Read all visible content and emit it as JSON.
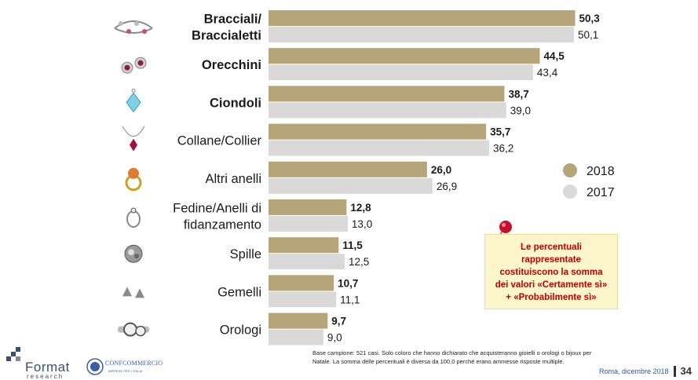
{
  "chart_data": {
    "type": "bar",
    "orientation": "horizontal",
    "categories": [
      [
        "Bracciali/",
        "Braccialetti"
      ],
      [
        "Orecchini"
      ],
      [
        "Ciondoli"
      ],
      [
        "Collane/Collier"
      ],
      [
        "Altri anelli"
      ],
      [
        "Fedine/Anelli di",
        "fidanzamento"
      ],
      [
        "Spille"
      ],
      [
        "Gemelli"
      ],
      [
        "Orologi"
      ]
    ],
    "bold_categories": [
      true,
      true,
      true,
      false,
      false,
      false,
      false,
      false,
      false
    ],
    "series": [
      {
        "name": "2018",
        "values": [
          50.3,
          44.5,
          38.7,
          35.7,
          26.0,
          12.8,
          11.5,
          10.7,
          9.7
        ],
        "labels": [
          "50,3",
          "44,5",
          "38,7",
          "35,7",
          "26,0",
          "12,8",
          "11,5",
          "10,7",
          "9,7"
        ],
        "color": "#b6a579"
      },
      {
        "name": "2017",
        "values": [
          50.1,
          43.4,
          39.0,
          36.2,
          26.9,
          13.0,
          12.5,
          11.1,
          9.0
        ],
        "labels": [
          "50,1",
          "43,4",
          "39,0",
          "36,2",
          "26,9",
          "13,0",
          "12,5",
          "11,1",
          "9,0"
        ],
        "color": "#d9d9d9"
      }
    ],
    "xlim": [
      0,
      55
    ],
    "grid": false,
    "legend_position": "right"
  },
  "category_icons": [
    "bracelet-icon",
    "earrings-icon",
    "pendant-icon",
    "necklace-icon",
    "ring-icon",
    "engagement-ring-icon",
    "brooch-icon",
    "cufflinks-icon",
    "watch-icon"
  ],
  "note": {
    "lines": [
      "Le percentuali",
      "rappresentate",
      "costituiscono la somma",
      "dei valori «Certamente sì»",
      "+ «Probabilmente sì»"
    ],
    "color": "#c00000",
    "background": "#fdf6cc"
  },
  "footnote": {
    "lines": [
      "Base campione: 521 casi. Solo coloro che hanno dichiarato che acquisteranno gioielli o orologi o bijoux per",
      "Natale. La somma delle percentuali è diversa da 100,0 perché erano ammesse risposte multiple."
    ]
  },
  "footer": {
    "location": "Roma, dicembre 2018",
    "page": "34"
  },
  "logos": {
    "format_name": "Format",
    "format_sub": "research",
    "conf_name": "CONFCOMMERCIO",
    "conf_sub": "IMPRESE PER L'ITALIA"
  }
}
